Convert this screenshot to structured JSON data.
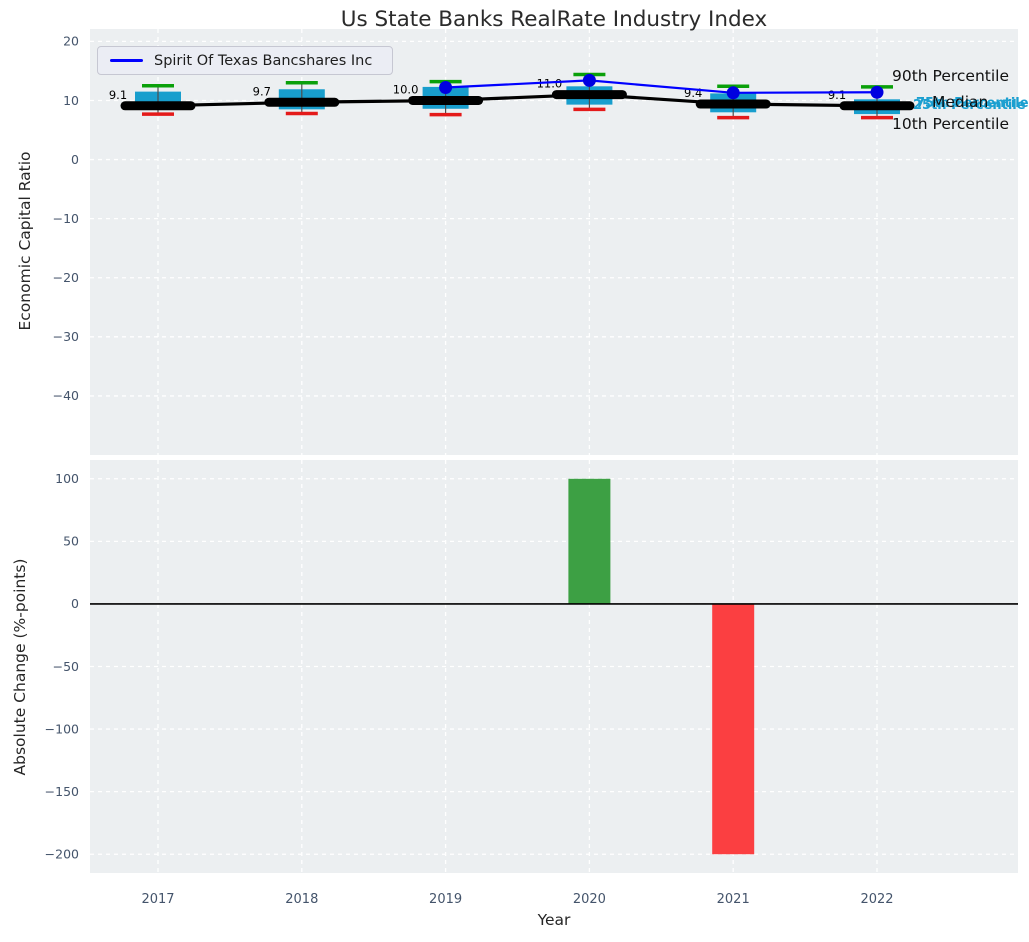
{
  "title": "Us State Banks RealRate Industry Index",
  "colors": {
    "axes_background": "#eceff1",
    "grid": "#ffffff",
    "box_fill": "#189ecd",
    "whisker": "#4d4d4d",
    "cap_high_green": "#0aa00a",
    "cap_low_red": "#e41a1a",
    "median_line": "#000000",
    "company_line": "#0000ff",
    "company_marker": "#0000e0",
    "bar_positive": "#3da044",
    "bar_negative": "#fb3f41",
    "percentile_label_cyan": "#1b9fd0",
    "tick_label": "#44546b",
    "zero_line": "#000000",
    "text": "#262626"
  },
  "chart_data": [
    {
      "type": "box-line",
      "title": "Us State Banks RealRate Industry Index",
      "ylabel": "Economic Capital Ratio",
      "categories": [
        "2017",
        "2018",
        "2019",
        "2020",
        "2021",
        "2022"
      ],
      "yticks": [
        20,
        10,
        0,
        -10,
        -20,
        -30,
        -40
      ],
      "ylim": [
        -50,
        22.1
      ],
      "grid": true,
      "legend_position": "upper left",
      "series": [
        {
          "name": "90th Percentile",
          "values": [
            12.5,
            13.0,
            13.2,
            14.4,
            12.4,
            12.3
          ]
        },
        {
          "name": "75th Percentile",
          "values": [
            11.5,
            11.9,
            12.3,
            12.4,
            11.2,
            10.2
          ]
        },
        {
          "name": "Median",
          "values": [
            9.1,
            9.7,
            10.0,
            11.0,
            9.4,
            9.1
          ]
        },
        {
          "name": "25th Percentile",
          "values": [
            8.4,
            8.5,
            8.6,
            9.3,
            8.0,
            7.7
          ]
        },
        {
          "name": "10th Percentile",
          "values": [
            7.7,
            7.8,
            7.6,
            8.5,
            7.1,
            7.1
          ]
        },
        {
          "name": "Spirit Of Texas Bancshares Inc",
          "values": [
            null,
            null,
            12.2,
            13.4,
            11.3,
            11.4
          ]
        }
      ],
      "median_labels": [
        "9.1",
        "9.7",
        "10.0",
        "11.0",
        "9.4",
        "9.1"
      ],
      "annotations": {
        "p90": "90th Percentile",
        "p75": "75th Percentile",
        "median": "Median",
        "p25": "25th Percentile",
        "p10": "10th Percentile"
      }
    },
    {
      "type": "bar",
      "ylabel": "Absolute Change (%-points)",
      "xlabel": "Year",
      "categories": [
        "2017",
        "2018",
        "2019",
        "2020",
        "2021",
        "2022"
      ],
      "values": [
        0,
        0,
        0,
        100,
        -200,
        0
      ],
      "yticks": [
        100,
        50,
        0,
        -50,
        -100,
        -150,
        -200
      ],
      "ylim": [
        -215,
        115
      ],
      "grid": true
    }
  ]
}
